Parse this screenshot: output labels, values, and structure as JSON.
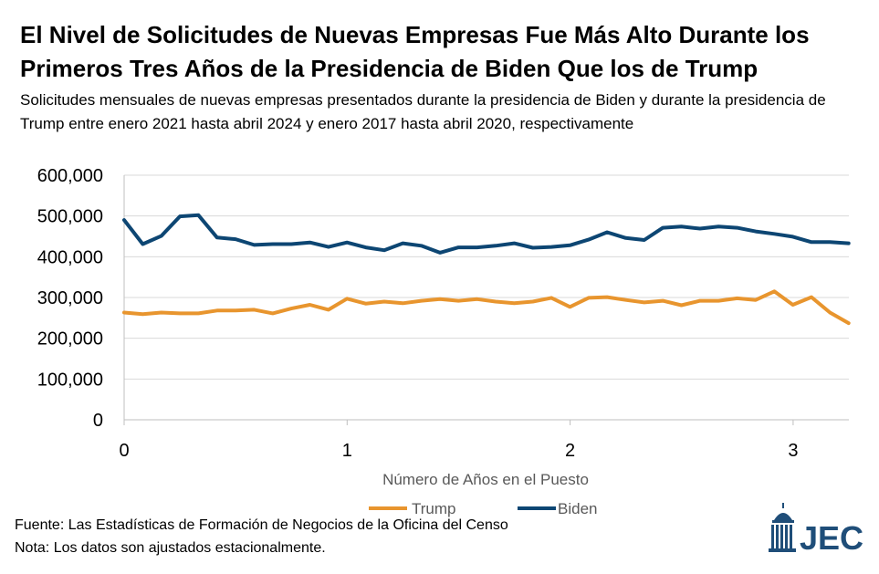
{
  "header": {
    "title": "El Nivel de Solicitudes de Nuevas Empresas Fue Más Alto Durante los Primeros Tres Años de la Presidencia de Biden Que los de Trump",
    "subtitle": "Solicitudes mensuales de nuevas empresas presentados durante la presidencia de Biden y durante la presidencia de Trump entre enero 2021 hasta abril 2024 y enero 2017 hasta abril 2020, respectivamente"
  },
  "footer": {
    "source": "Fuente: Las Estadísticas de Formación de Negocios de la Oficina del Censo",
    "note": "Nota: Los datos son ajustados estacionalmente."
  },
  "logo": {
    "text": "JEC",
    "icon": "capitol-dome-icon",
    "color": "#1F4E79"
  },
  "chart_data": {
    "type": "line",
    "title": "",
    "xlabel": "Número de Años en el Puesto",
    "ylabel": "",
    "xlim": [
      0,
      3.25
    ],
    "ylim": [
      0,
      600000
    ],
    "x_ticks": [
      "0",
      "1",
      "2",
      "3"
    ],
    "y_ticks": [
      "0",
      "100,000",
      "200,000",
      "300,000",
      "400,000",
      "500,000",
      "600,000"
    ],
    "grid": "horizontal",
    "legend": "bottom",
    "series": [
      {
        "name": "Trump",
        "color": "#E8952E",
        "x_step": 0.0833,
        "values": [
          263000,
          259000,
          263000,
          261000,
          261000,
          268000,
          268000,
          270000,
          261000,
          273000,
          282000,
          270000,
          297000,
          285000,
          290000,
          286000,
          292000,
          296000,
          292000,
          296000,
          290000,
          286000,
          290000,
          299000,
          277000,
          299000,
          301000,
          294000,
          288000,
          292000,
          281000,
          292000,
          292000,
          298000,
          294000,
          315000,
          282000,
          301000,
          263000,
          237000
        ]
      },
      {
        "name": "Biden",
        "color": "#0D4673",
        "x_step": 0.0833,
        "values": [
          490000,
          431000,
          451000,
          499000,
          502000,
          447000,
          443000,
          429000,
          431000,
          431000,
          435000,
          424000,
          435000,
          423000,
          416000,
          433000,
          427000,
          410000,
          423000,
          423000,
          427000,
          433000,
          422000,
          424000,
          428000,
          442000,
          460000,
          446000,
          441000,
          471000,
          474000,
          469000,
          474000,
          471000,
          462000,
          456000,
          449000,
          436000,
          436000,
          433000
        ]
      }
    ]
  }
}
